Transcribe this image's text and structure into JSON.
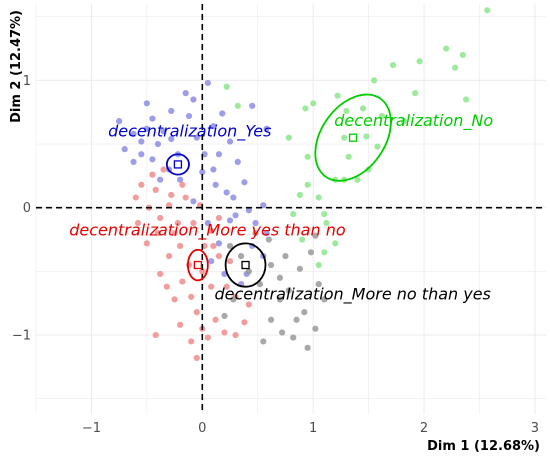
{
  "chart_data": {
    "type": "scatter",
    "xlabel": "Dim 1 (12.68%)",
    "ylabel": "Dim 2 (12.47%)",
    "xlim": [
      -1.5,
      3.1
    ],
    "ylim": [
      -1.62,
      1.6
    ],
    "x_ticks": [
      -1,
      0,
      1,
      2,
      3
    ],
    "y_ticks": [
      -1,
      0,
      1
    ],
    "grid": true,
    "reference_lines": {
      "x": 0,
      "y": 0,
      "style": "dashed"
    },
    "groups": [
      {
        "color": "#0000cc",
        "light_color": "#8c8ce6",
        "centroid": {
          "x": -0.22,
          "y": 0.34
        },
        "ellipse": {
          "cx": -0.22,
          "cy": 0.34,
          "rx": 0.1,
          "ry": 0.08,
          "angle": 0
        },
        "label": {
          "text": "decentralization_Yes",
          "x": -0.85,
          "y": 0.56
        },
        "points": [
          [
            -0.75,
            0.68
          ],
          [
            -0.62,
            0.58
          ],
          [
            -0.55,
            0.52
          ],
          [
            -0.5,
            0.62
          ],
          [
            -0.45,
            0.7
          ],
          [
            -0.4,
            0.5
          ],
          [
            -0.35,
            0.6
          ],
          [
            -0.28,
            0.54
          ],
          [
            -0.22,
            0.42
          ],
          [
            -0.15,
            0.9
          ],
          [
            -0.12,
            0.72
          ],
          [
            -0.08,
            0.85
          ],
          [
            -0.05,
            0.55
          ],
          [
            0.05,
            0.98
          ],
          [
            0.1,
            0.64
          ],
          [
            0.18,
            0.74
          ],
          [
            0.25,
            0.52
          ],
          [
            0.32,
            0.36
          ],
          [
            0.22,
            0.12
          ],
          [
            0.1,
            0.3
          ],
          [
            -0.3,
            0.3
          ],
          [
            -0.45,
            0.38
          ],
          [
            -0.55,
            0.42
          ],
          [
            -0.62,
            0.36
          ],
          [
            -0.7,
            0.46
          ],
          [
            -0.38,
            0.22
          ],
          [
            -0.2,
            0.22
          ],
          [
            0.02,
            0.42
          ],
          [
            0.12,
            0.18
          ],
          [
            0.28,
            0.08
          ],
          [
            0.38,
            0.2
          ],
          [
            0.42,
            -0.02
          ],
          [
            0.48,
            -0.12
          ],
          [
            0.55,
            0.02
          ],
          [
            0.3,
            -0.06
          ],
          [
            0.45,
            -0.3
          ],
          [
            0.58,
            -0.2
          ],
          [
            0.55,
            -0.38
          ],
          [
            0.4,
            -0.52
          ],
          [
            0.35,
            -0.6
          ],
          [
            0.15,
            -0.28
          ],
          [
            0.05,
            -0.12
          ],
          [
            -0.08,
            0.05
          ],
          [
            0.0,
            0.28
          ],
          [
            0.15,
            0.42
          ],
          [
            0.58,
            0.62
          ],
          [
            0.45,
            0.8
          ],
          [
            -0.28,
            0.76
          ],
          [
            -0.5,
            0.82
          ],
          [
            0.08,
            -0.42
          ],
          [
            0.2,
            -0.52
          ],
          [
            0.25,
            -0.1
          ]
        ]
      },
      {
        "color": "#00cc00",
        "light_color": "#8ce68c",
        "centroid": {
          "x": 1.36,
          "y": 0.55
        },
        "ellipse": {
          "cx": 1.36,
          "cy": 0.55,
          "rx": 0.43,
          "ry": 0.25,
          "angle": -55
        },
        "label": {
          "text": "decentralization_No",
          "x": 1.19,
          "y": 0.64
        },
        "points": [
          [
            2.57,
            1.55
          ],
          [
            2.2,
            1.25
          ],
          [
            2.28,
            1.1
          ],
          [
            2.35,
            1.2
          ],
          [
            1.96,
            1.15
          ],
          [
            2.38,
            0.85
          ],
          [
            1.92,
            0.9
          ],
          [
            1.72,
            1.12
          ],
          [
            1.55,
            1.0
          ],
          [
            1.82,
            0.68
          ],
          [
            1.58,
            0.48
          ],
          [
            1.48,
            0.56
          ],
          [
            1.3,
            0.76
          ],
          [
            1.22,
            0.88
          ],
          [
            1.45,
            0.78
          ],
          [
            1.62,
            0.72
          ],
          [
            1.32,
            0.4
          ],
          [
            1.2,
            0.22
          ],
          [
            1.12,
            -0.12
          ],
          [
            1.1,
            -0.35
          ],
          [
            1.05,
            -0.45
          ],
          [
            1.2,
            -0.28
          ],
          [
            1.4,
            0.22
          ],
          [
            1.28,
            0.55
          ],
          [
            0.93,
            0.78
          ],
          [
            1.0,
            0.82
          ],
          [
            0.88,
            0.1
          ],
          [
            1.05,
            0.08
          ],
          [
            0.95,
            0.4
          ],
          [
            0.22,
            0.95
          ],
          [
            0.32,
            0.8
          ],
          [
            0.78,
            0.55
          ],
          [
            0.82,
            -0.05
          ],
          [
            0.9,
            -0.25
          ],
          [
            1.1,
            -0.05
          ],
          [
            0.95,
            0.18
          ],
          [
            1.28,
            0.22
          ],
          [
            1.5,
            0.3
          ]
        ]
      },
      {
        "color": "#e60000",
        "light_color": "#f08c8c",
        "centroid": {
          "x": -0.04,
          "y": -0.45
        },
        "ellipse": {
          "cx": -0.04,
          "cy": -0.45,
          "rx": 0.09,
          "ry": 0.12,
          "angle": 0
        },
        "label": {
          "text": "decentralization_More yes than no",
          "x": -1.2,
          "y": -0.22
        },
        "points": [
          [
            -0.55,
            0.18
          ],
          [
            -0.6,
            0.08
          ],
          [
            -0.48,
            0.0
          ],
          [
            -0.42,
            0.14
          ],
          [
            -0.38,
            -0.08
          ],
          [
            -0.3,
            0.02
          ],
          [
            -0.25,
            -0.2
          ],
          [
            -0.2,
            -0.3
          ],
          [
            -0.3,
            -0.38
          ],
          [
            -0.38,
            -0.52
          ],
          [
            -0.32,
            -0.62
          ],
          [
            -0.25,
            -0.72
          ],
          [
            -0.18,
            -0.58
          ],
          [
            -0.1,
            -0.7
          ],
          [
            -0.05,
            -0.82
          ],
          [
            0.0,
            -0.95
          ],
          [
            -0.1,
            -1.05
          ],
          [
            -0.05,
            -1.18
          ],
          [
            0.05,
            -1.02
          ],
          [
            0.12,
            -0.88
          ],
          [
            0.2,
            -0.98
          ],
          [
            0.3,
            -1.0
          ],
          [
            0.38,
            -0.9
          ],
          [
            -0.42,
            -1.0
          ],
          [
            -0.2,
            -0.92
          ],
          [
            -0.15,
            0.08
          ],
          [
            -0.08,
            -0.12
          ],
          [
            0.02,
            -0.3
          ],
          [
            0.08,
            -0.18
          ],
          [
            0.15,
            -0.38
          ],
          [
            0.22,
            -0.62
          ],
          [
            0.3,
            -0.7
          ],
          [
            0.42,
            -0.76
          ],
          [
            0.08,
            -0.62
          ],
          [
            -0.12,
            -0.45
          ],
          [
            -0.22,
            -0.12
          ],
          [
            -0.5,
            -0.28
          ],
          [
            -0.58,
            -0.12
          ],
          [
            -0.45,
            0.26
          ],
          [
            -0.35,
            0.3
          ],
          [
            -0.18,
            0.18
          ],
          [
            -0.28,
            0.1
          ],
          [
            -0.4,
            -0.2
          ],
          [
            0.0,
            -0.5
          ],
          [
            0.1,
            -0.3
          ],
          [
            -0.02,
            0.02
          ],
          [
            0.15,
            -0.08
          ],
          [
            0.25,
            -0.42
          ]
        ]
      },
      {
        "color": "#000000",
        "light_color": "#999999",
        "centroid": {
          "x": 0.39,
          "y": -0.45
        },
        "ellipse": {
          "cx": 0.39,
          "cy": -0.45,
          "rx": 0.18,
          "ry": 0.17,
          "angle": 0
        },
        "label": {
          "text": "decentralization_More no than yes",
          "x": 0.11,
          "y": -0.72
        },
        "points": [
          [
            0.35,
            -0.38
          ],
          [
            0.42,
            -0.5
          ],
          [
            0.52,
            -0.6
          ],
          [
            0.62,
            -0.45
          ],
          [
            0.7,
            -0.72
          ],
          [
            0.78,
            -0.65
          ],
          [
            0.85,
            -0.88
          ],
          [
            0.92,
            -0.82
          ],
          [
            1.05,
            -0.6
          ],
          [
            1.1,
            -0.72
          ],
          [
            1.02,
            -0.95
          ],
          [
            0.72,
            -0.98
          ],
          [
            0.62,
            -0.88
          ],
          [
            0.55,
            -1.05
          ],
          [
            0.82,
            -1.02
          ],
          [
            0.95,
            -1.1
          ],
          [
            0.2,
            -0.85
          ],
          [
            0.28,
            -0.72
          ],
          [
            0.48,
            -0.2
          ],
          [
            0.6,
            -0.25
          ],
          [
            0.75,
            -0.38
          ],
          [
            0.88,
            -0.48
          ],
          [
            0.98,
            -0.35
          ],
          [
            0.7,
            -0.55
          ],
          [
            1.02,
            -0.22
          ],
          [
            0.25,
            -0.3
          ]
        ]
      }
    ]
  }
}
